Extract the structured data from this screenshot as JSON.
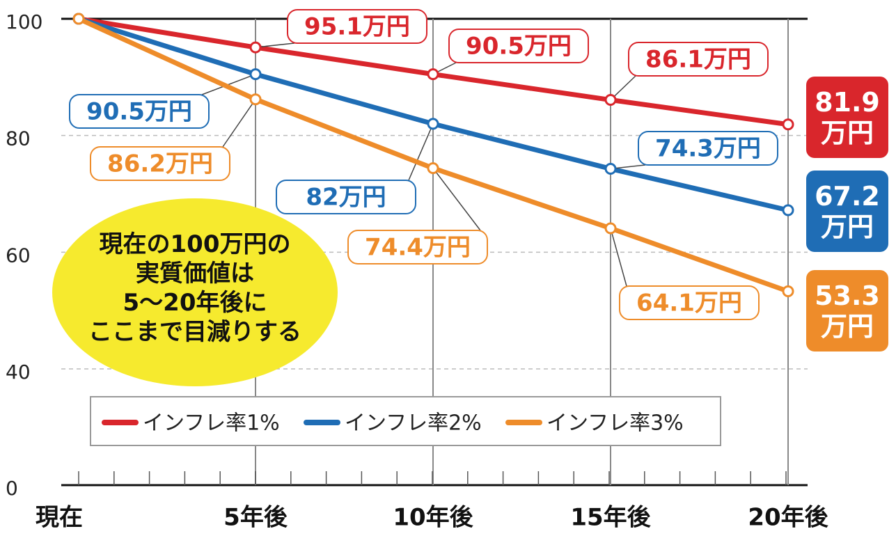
{
  "chart_data": {
    "type": "line",
    "categories": [
      "現在",
      "5年後",
      "10年後",
      "15年後",
      "20年後"
    ],
    "series": [
      {
        "name": "インフレ率1%",
        "color": "#d9262c",
        "values": [
          100,
          95.1,
          90.5,
          86.1,
          81.9
        ],
        "value_labels": [
          null,
          "95.1万円",
          "90.5万円",
          "86.1万円",
          "81.9\n万円"
        ]
      },
      {
        "name": "インフレ率2%",
        "color": "#1f6db5",
        "values": [
          100,
          90.5,
          82,
          74.3,
          67.2
        ],
        "value_labels": [
          null,
          "90.5万円",
          "82万円",
          "74.3万円",
          "67.2\n万円"
        ]
      },
      {
        "name": "インフレ率3%",
        "color": "#ee8c2a",
        "values": [
          100,
          86.2,
          74.4,
          64.1,
          53.3
        ],
        "value_labels": [
          null,
          "86.2万円",
          "74.4万円",
          "64.1万円",
          "53.3\n万円"
        ]
      }
    ],
    "ylim": [
      0,
      100
    ],
    "yticks": [
      0,
      40,
      60,
      80,
      100
    ],
    "axis_break": [
      0,
      40
    ],
    "grid": true,
    "annotation": [
      "現在の100万円の",
      "実質価値は",
      "5～20年後に",
      "ここまで目減りする"
    ]
  }
}
